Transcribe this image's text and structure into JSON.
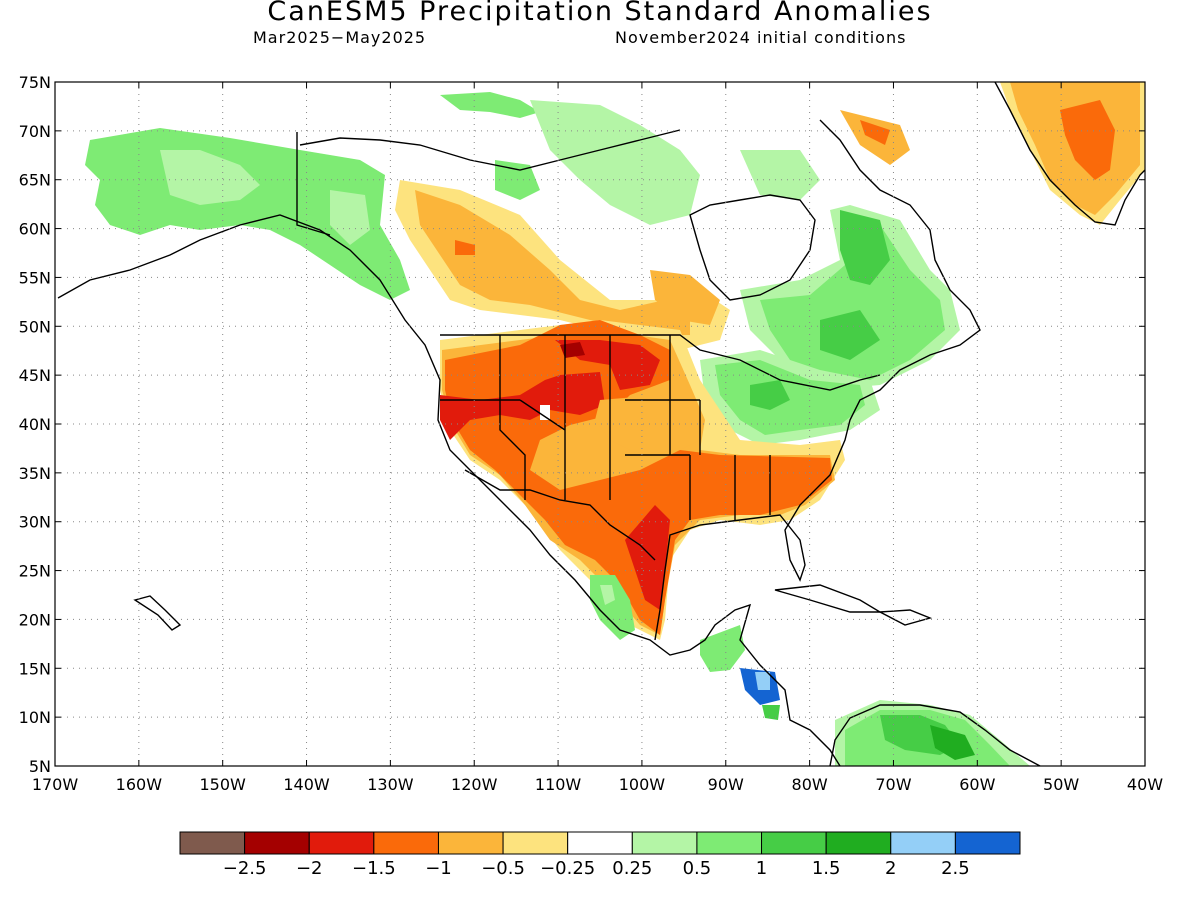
{
  "title": "CanESM5 Precipitation Standard Anomalies",
  "subtitle_left": "Mar2025−May2025",
  "subtitle_right": "November2024 initial conditions",
  "map": {
    "lon_range": [
      -170,
      -40
    ],
    "lat_range": [
      5,
      75
    ],
    "lat_ticks": [
      "5N",
      "10N",
      "15N",
      "20N",
      "25N",
      "30N",
      "35N",
      "40N",
      "45N",
      "50N",
      "55N",
      "60N",
      "65N",
      "70N",
      "75N"
    ],
    "lon_ticks": [
      "170W",
      "160W",
      "150W",
      "140W",
      "130W",
      "120W",
      "110W",
      "100W",
      "90W",
      "80W",
      "70W",
      "60W",
      "50W",
      "40W"
    ],
    "grid": "dotted"
  },
  "legend": {
    "colors": [
      "#7f5a4d",
      "#a40000",
      "#e11b0c",
      "#fa6a0a",
      "#fbb53a",
      "#fde37e",
      "#ffffff",
      "#b4f5a6",
      "#7eeb74",
      "#46cd46",
      "#20ad20",
      "#94cff7",
      "#1464d2"
    ],
    "labels": [
      "−2.5",
      "−2",
      "−1.5",
      "−1",
      "−0.5",
      "−0.25",
      "0.25",
      "0.5",
      "1",
      "1.5",
      "2",
      "2.5"
    ]
  }
}
